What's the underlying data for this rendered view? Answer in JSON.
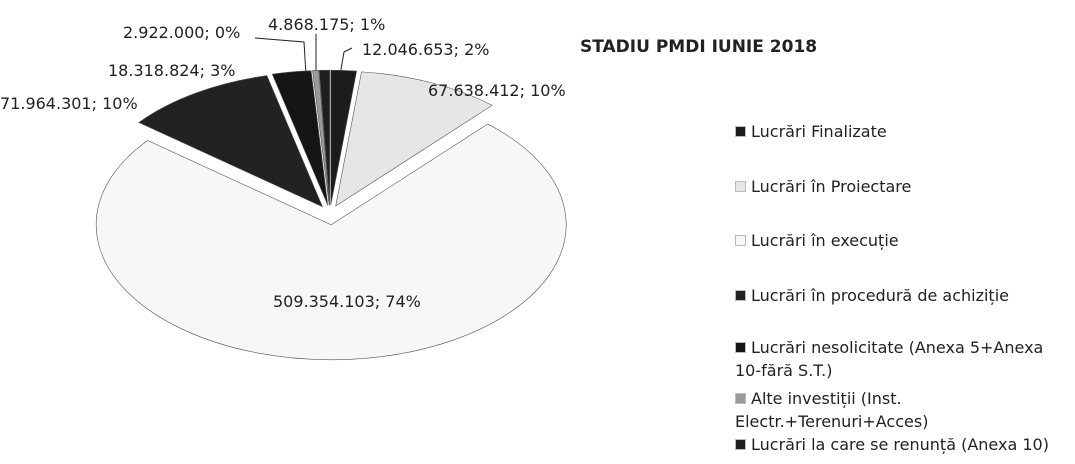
{
  "chart_data": {
    "type": "pie",
    "title": "STADIU PMDI IUNIE 2018",
    "categories": [
      "Lucrări Finalizate",
      "Lucrări în Proiectare",
      "Lucrări în execuție",
      "Lucrări în procedură de achiziție",
      "Lucrări nesolicitate (Anexa 5+Anexa 10-fără S.T.)",
      "Alte investiții (Inst. Electr.+Terenuri+Acces)",
      "Lucrări la care se renunță (Anexa 10)"
    ],
    "values": [
      12046653,
      67638412,
      509354103,
      71964301,
      18318824,
      2922000,
      4868175
    ],
    "value_labels": [
      "12.046.653; 2%",
      "67.638.412; 10%",
      "509.354.103; 74%",
      "71.964.301; 10%",
      "18.318.824; 3%",
      "2.922.000; 0%",
      "4.868.175; 1%"
    ],
    "colors": [
      "#1c1c1c",
      "#e6e6e6",
      "#f7f7f7",
      "#222222",
      "#151515",
      "#9a9a9a",
      "#1e1e1e"
    ]
  }
}
